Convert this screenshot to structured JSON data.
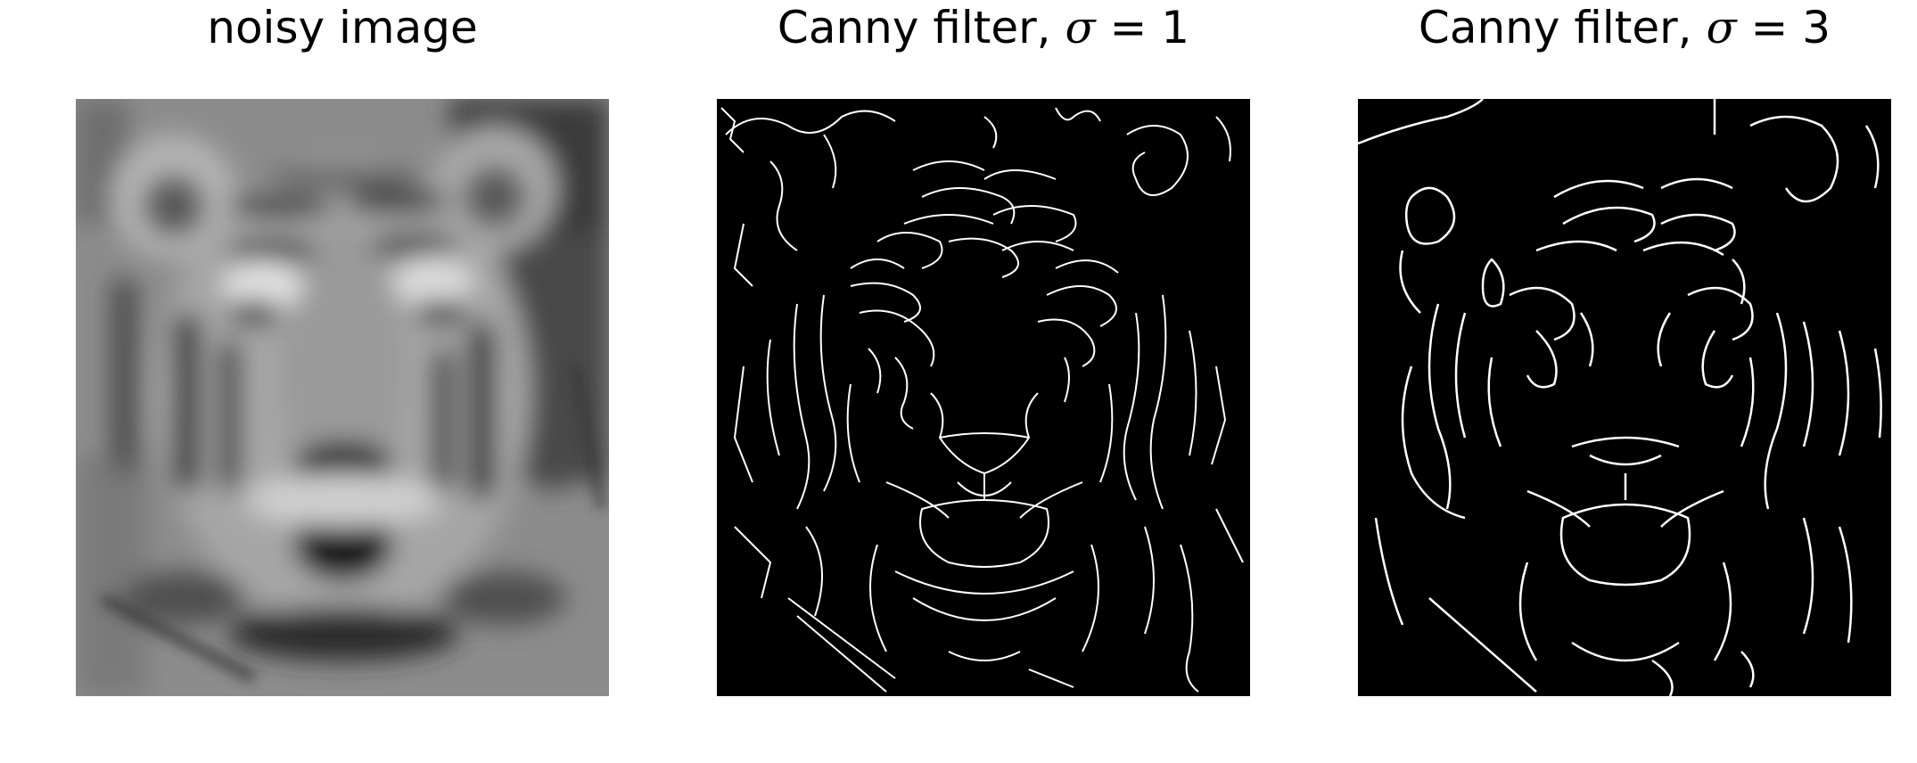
{
  "panels": [
    {
      "title_text": "noisy image",
      "title_symbol": "",
      "title_value": "",
      "image": "blurred-grayscale-tiger-face-photo"
    },
    {
      "title_text": "Canny filter, ",
      "title_symbol": "σ",
      "title_value": " = 1",
      "image": "canny-edge-map-sigma-1"
    },
    {
      "title_text": "Canny filter, ",
      "title_symbol": "σ",
      "title_value": " = 3",
      "image": "canny-edge-map-sigma-3"
    }
  ],
  "colors": {
    "edge_background": "#000000",
    "edge_lines": "#ffffff",
    "photo_base": "#8c8c8c"
  }
}
